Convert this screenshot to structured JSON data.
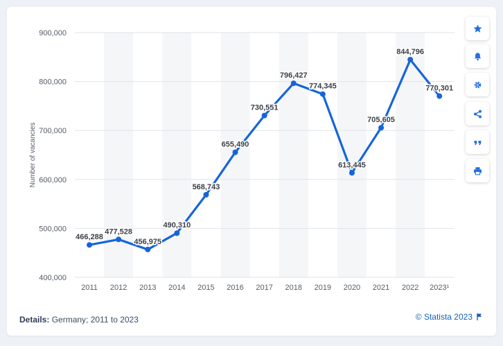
{
  "details": {
    "label": "Details:",
    "text": "Germany; 2011 to 2023"
  },
  "credit": "© Statista 2023",
  "toolbar": [
    {
      "name": "favorite",
      "icon": "star-icon"
    },
    {
      "name": "notifications",
      "icon": "bell-icon"
    },
    {
      "name": "settings",
      "icon": "gear-icon"
    },
    {
      "name": "share",
      "icon": "share-icon"
    },
    {
      "name": "cite",
      "icon": "quote-icon"
    },
    {
      "name": "print",
      "icon": "print-icon"
    }
  ],
  "colors": {
    "line": "#1565d8",
    "accent": "#2670e0",
    "label": "#3b3f46",
    "grid": "#dfe3ea",
    "band": "#f5f6f8"
  },
  "chart_data": {
    "type": "line",
    "title": "",
    "xlabel": "",
    "ylabel": "Number of vacancies",
    "categories": [
      "2011",
      "2012",
      "2013",
      "2014",
      "2015",
      "2016",
      "2017",
      "2018",
      "2019",
      "2020",
      "2021",
      "2022",
      "2023¹"
    ],
    "series": [
      {
        "name": "Number of vacancies",
        "values": [
          466288,
          477528,
          456975,
          490310,
          568743,
          655490,
          730551,
          796427,
          774345,
          613445,
          705605,
          844796,
          770301
        ],
        "labels": [
          "466,288",
          "477,528",
          "456,975",
          "490,310",
          "568,743",
          "655,490",
          "730,551",
          "796,427",
          "774,345",
          "613,445",
          "705,605",
          "844,796",
          "770,301"
        ]
      }
    ],
    "ylim": [
      400000,
      900000
    ],
    "yticks": [
      400000,
      500000,
      600000,
      700000,
      800000,
      900000
    ],
    "ytick_labels": [
      "400,000",
      "500,000",
      "600,000",
      "700,000",
      "800,000",
      "900,000"
    ],
    "grid": true
  }
}
